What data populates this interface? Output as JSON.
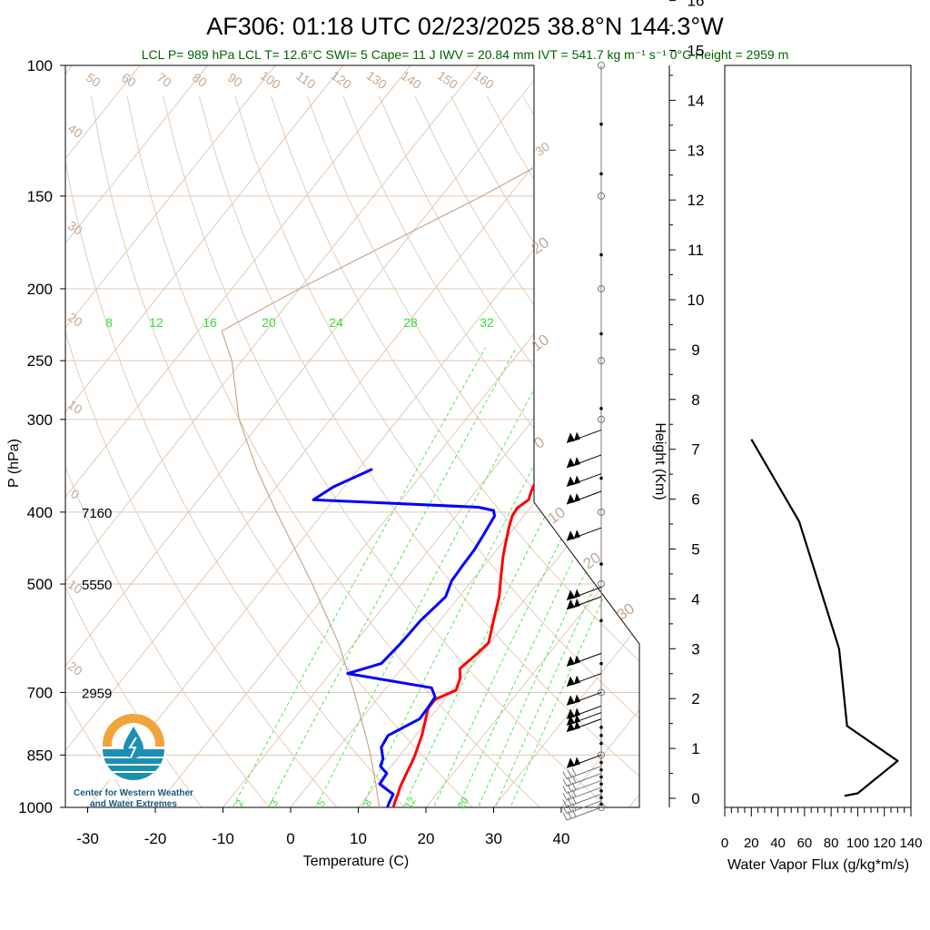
{
  "title": "AF306: 01:18 UTC 02/23/2025  38.8°N 144.3°W",
  "subtitle": "LCL P= 989 hPa  LCL T= 12.6°C  SWI= 5  Cape= 11 J  IWV = 20.84 mm  IVT = 541.7 kg m⁻¹ s⁻¹  0°C Height = 2959 m",
  "logo": {
    "line1": "Center for Western Weather",
    "line2": "and Water Extremes"
  },
  "colors": {
    "temperature": "#ff0000",
    "dewpoint": "#0000ff",
    "isotherm": "#e0c8b4",
    "mixing_ratio": "#33dd33",
    "logo_orange": "#f2a33a",
    "logo_blue": "#1c8fb5"
  },
  "chart_data": [
    {
      "type": "line",
      "name": "skew-t",
      "title": "AF306: 01:18 UTC 02/23/2025  38.8°N 144.3°W",
      "xlabel": "Temperature (C)",
      "ylabel": "P (hPa)",
      "xlim": [
        -33,
        45
      ],
      "ylim": [
        1000,
        100
      ],
      "y_scale": "log",
      "x_ticks": [
        -30,
        -20,
        -10,
        0,
        10,
        20,
        30,
        40
      ],
      "y_ticks": [
        100,
        150,
        200,
        250,
        300,
        400,
        500,
        700,
        850,
        1000
      ],
      "height_labels": [
        {
          "p": 400,
          "label": "7160"
        },
        {
          "p": 500,
          "label": "5550"
        },
        {
          "p": 700,
          "label": "2959"
        }
      ],
      "isotherm_labels": [
        "50",
        "60",
        "70",
        "80",
        "90",
        "100",
        "110",
        "120",
        "130",
        "140",
        "150",
        "160",
        "40",
        "30",
        "20",
        "10",
        "0",
        "10",
        "20",
        "30"
      ],
      "mixing_ratio_labels": [
        "8",
        "12",
        "16",
        "20",
        "24",
        "28",
        "32"
      ],
      "mixing_ratio_labels_bottom": [
        "2",
        "3",
        "5",
        "8",
        "12",
        "20"
      ],
      "series": [
        {
          "name": "Temperature",
          "p": [
            1000,
            985,
            960,
            940,
            900,
            870,
            850,
            800,
            760,
            735,
            715,
            695,
            670,
            650,
            620,
            600,
            560,
            520,
            490,
            460,
            440,
            420,
            405,
            395,
            385,
            375,
            365,
            350
          ],
          "t": [
            15.2,
            14.8,
            14.3,
            13.8,
            13.1,
            12.6,
            12.2,
            10.9,
            9.5,
            8.6,
            8.6,
            10.6,
            9.8,
            8.6,
            9.4,
            9.8,
            7.9,
            5.9,
            3.9,
            1.8,
            0.5,
            -0.8,
            -1.7,
            -1.9,
            -1.2,
            -1.8,
            -2.3,
            0.6
          ]
        },
        {
          "name": "Dewpoint",
          "p": [
            1000,
            985,
            960,
            930,
            900,
            880,
            860,
            830,
            800,
            760,
            735,
            710,
            690,
            660,
            640,
            600,
            560,
            520,
            495,
            470,
            450,
            430,
            405,
            398,
            394,
            385,
            370,
            350
          ],
          "t": [
            14.3,
            14.0,
            13.6,
            10.4,
            10.2,
            8.4,
            7.9,
            6.3,
            5.9,
            8.6,
            8.5,
            8.3,
            6.7,
            -7.4,
            -3.6,
            -3.1,
            -2.9,
            -2.0,
            -3.0,
            -3.2,
            -3.3,
            -3.7,
            -4.3,
            -5.1,
            -7.7,
            -33.0,
            -31.6,
            -27.9
          ]
        }
      ],
      "wind_barb_levels_hpa": [
        1000,
        980,
        960,
        940,
        920,
        900,
        880,
        850,
        760,
        745,
        730,
        700,
        660,
        620,
        520,
        505,
        420,
        375,
        355,
        335,
        310
      ]
    },
    {
      "type": "line",
      "name": "water-vapor-flux",
      "xlabel": "Water Vapor Flux (g/kg*m/s)",
      "ylabel": "Height (Km)",
      "xlim": [
        0,
        140
      ],
      "ylim": [
        -0.2,
        16.3
      ],
      "x_ticks": [
        0,
        20,
        40,
        60,
        80,
        100,
        120,
        140
      ],
      "y_ticks": [
        0,
        1,
        2,
        3,
        4,
        5,
        6,
        7,
        8,
        9,
        10,
        11,
        12,
        13,
        14,
        15,
        16
      ],
      "x": [
        90,
        100,
        130,
        92,
        86,
        56,
        20
      ],
      "y": [
        0.05,
        0.1,
        0.75,
        1.45,
        3.0,
        5.55,
        7.2
      ]
    }
  ]
}
